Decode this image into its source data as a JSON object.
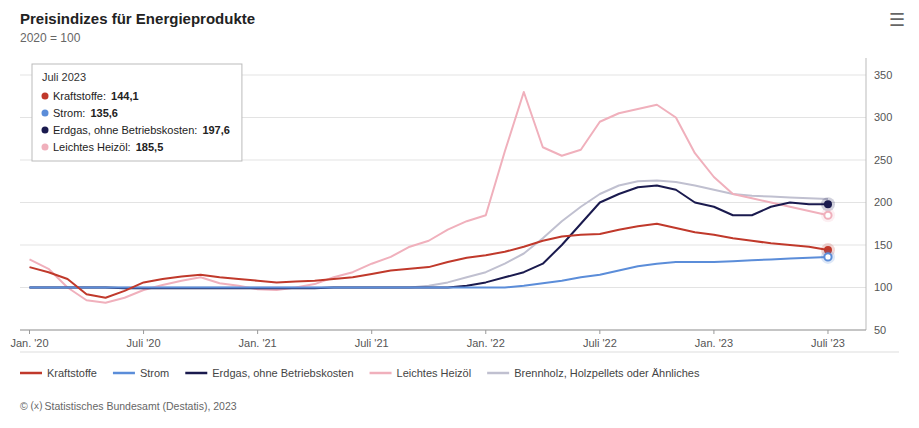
{
  "chart_data": {
    "type": "line",
    "title": "Preisindizes für Energieprodukte",
    "subtitle": "2020 = 100",
    "footer": "© ⒳ Statistisches Bundesamt (Destatis), 2023",
    "menu_icon": "☰",
    "categories": [
      "Jan. '20",
      null,
      null,
      null,
      null,
      null,
      "Juli '20",
      null,
      null,
      null,
      null,
      null,
      "Jan. '21",
      null,
      null,
      null,
      null,
      null,
      "Juli '21",
      null,
      null,
      null,
      null,
      null,
      "Jan. '22",
      null,
      null,
      null,
      null,
      null,
      "Juli '22",
      null,
      null,
      null,
      null,
      null,
      "Jan. '23",
      null,
      null,
      null,
      null,
      null,
      "Juli '23"
    ],
    "series": [
      {
        "name": "Kraftstoffe",
        "color": "#c0392b",
        "marker": "circle",
        "values": [
          124,
          118,
          110,
          92,
          88,
          96,
          106,
          110,
          113,
          115,
          112,
          110,
          108,
          106,
          107,
          108,
          110,
          112,
          116,
          120,
          122,
          124,
          130,
          135,
          138,
          142,
          148,
          155,
          160,
          162,
          163,
          168,
          172,
          175,
          170,
          165,
          162,
          158,
          155,
          152,
          150,
          148,
          144
        ]
      },
      {
        "name": "Strom",
        "color": "#5b8dd9",
        "marker": "open-circle",
        "values": [
          100,
          100,
          100,
          100,
          100,
          100,
          100,
          100,
          100,
          100,
          100,
          100,
          100,
          100,
          100,
          100,
          100,
          100,
          100,
          100,
          100,
          100,
          100,
          100,
          100,
          100,
          102,
          105,
          108,
          112,
          115,
          120,
          125,
          128,
          130,
          130,
          130,
          131,
          132,
          133,
          134,
          135,
          136
        ]
      },
      {
        "name": "Erdgas, ohne Betriebskosten",
        "color": "#1a1a4e",
        "marker": "circle",
        "values": [
          100,
          100,
          100,
          100,
          100,
          99,
          99,
          99,
          99,
          99,
          99,
          99,
          99,
          99,
          99,
          99,
          100,
          100,
          100,
          100,
          100,
          100,
          100,
          102,
          106,
          112,
          118,
          128,
          150,
          175,
          200,
          210,
          218,
          220,
          215,
          200,
          195,
          185,
          185,
          195,
          200,
          198,
          198
        ]
      },
      {
        "name": "Leichtes Heizöl",
        "color": "#f0b0bc",
        "marker": "open-circle",
        "values": [
          133,
          122,
          100,
          85,
          82,
          88,
          97,
          103,
          108,
          112,
          105,
          102,
          98,
          97,
          100,
          104,
          112,
          118,
          128,
          136,
          148,
          155,
          168,
          178,
          185,
          260,
          330,
          265,
          255,
          262,
          295,
          305,
          310,
          315,
          300,
          258,
          230,
          210,
          205,
          200,
          195,
          190,
          185
        ]
      },
      {
        "name": "Brennholz, Holzpellets oder Ähnliches",
        "color": "#c0c0d0",
        "values": [
          100,
          100,
          100,
          100,
          100,
          100,
          100,
          100,
          100,
          100,
          100,
          100,
          100,
          100,
          100,
          100,
          100,
          100,
          100,
          100,
          100,
          102,
          106,
          112,
          118,
          128,
          140,
          158,
          178,
          195,
          210,
          220,
          225,
          226,
          224,
          220,
          215,
          210,
          208,
          207,
          206,
          205,
          204
        ]
      }
    ],
    "tooltip": {
      "title": "Juli 2023",
      "lines": [
        {
          "label": "Kraftstoffe: ",
          "value": "144,1",
          "color": "#c0392b"
        },
        {
          "label": "Strom: ",
          "value": "135,6",
          "color": "#5b8dd9"
        },
        {
          "label": "Erdgas, ohne Betriebskosten: ",
          "value": "197,6",
          "color": "#1a1a4e"
        },
        {
          "label": "Leichtes Heizöl: ",
          "value": "185,5",
          "color": "#f0b0bc"
        }
      ]
    },
    "ylim": [
      50,
      370
    ],
    "yticks": [
      50,
      100,
      150,
      200,
      250,
      300,
      350
    ],
    "grid": true,
    "legend": "bottom"
  }
}
